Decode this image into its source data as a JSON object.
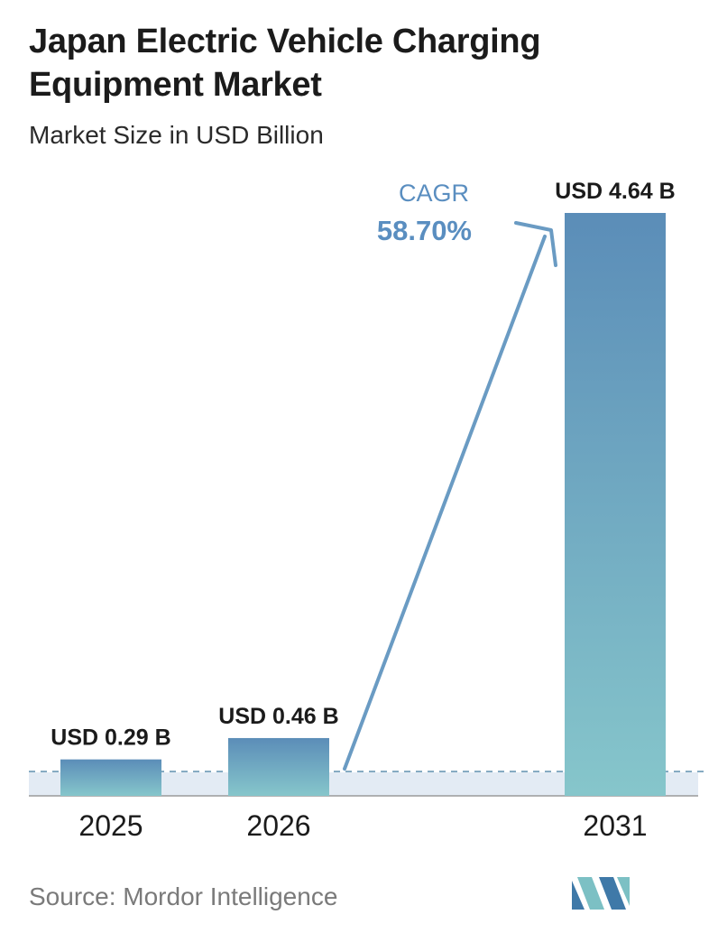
{
  "title": "Japan Electric Vehicle Charging Equipment Market",
  "subtitle": "Market Size in USD Billion",
  "source": "Source:  Mordor Intelligence",
  "cagr": {
    "label": "CAGR",
    "value": "58.70%"
  },
  "colors": {
    "bar_top": "#5b8db8",
    "bar_bottom": "#86c6cb",
    "arrow": "#6a9bc3",
    "cagr_text": "#5a8ec0",
    "dashed_line": "#5f8fae",
    "base_band": "#e3ebf4"
  },
  "chart_data": {
    "type": "bar",
    "title": "Japan Electric Vehicle Charging Equipment Market",
    "subtitle": "Market Size in USD Billion",
    "categories": [
      "2025",
      "2026",
      "2031"
    ],
    "values": [
      0.29,
      0.46,
      4.64
    ],
    "data_labels": [
      "USD 0.29 B",
      "USD 0.46 B",
      "USD 4.64 B"
    ],
    "xlabel": "",
    "ylabel": "",
    "grid": false,
    "legend": "none"
  }
}
